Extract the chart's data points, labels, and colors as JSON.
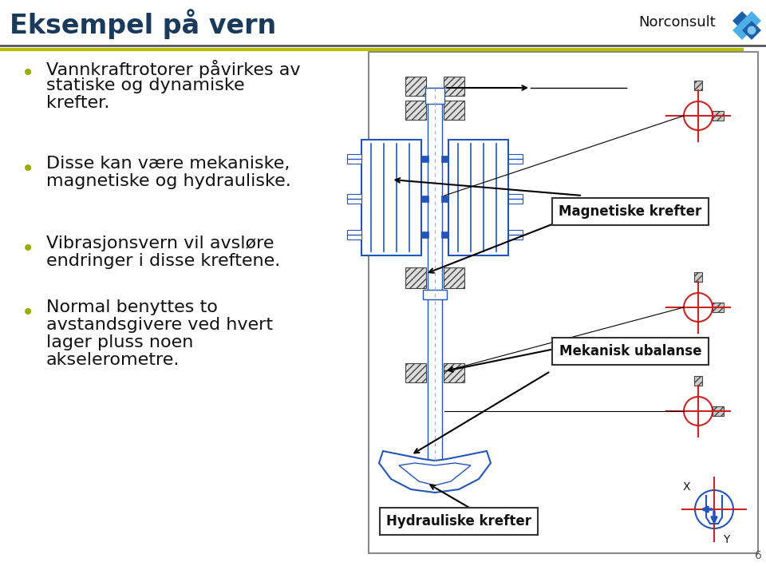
{
  "title": "Eksempel på vern",
  "title_color": "#1a3a5c",
  "title_fontsize": 24,
  "header_line_color1": "#555555",
  "header_line_color2": "#b5bd00",
  "bullet_color": "#9aaa00",
  "bullet_points_line1": [
    "Vannkraftrotorer påvirkes av",
    "statiske og dynamiske",
    "krefter."
  ],
  "bullet_points_line2": [
    "Disse kan være mekaniske,",
    "magnetiske og hydrauliske."
  ],
  "bullet_points_line3": [
    "Vibrasjonsvern vil avsløre",
    "endringer i disse kreftene."
  ],
  "bullet_points_line4": [
    "Normal benyttes to",
    "avstandsgivere ved hvert",
    "lager pluss noen",
    "akselerometre."
  ],
  "bullet_fontsize": 16,
  "text_color": "#111111",
  "box_border_color": "#888888",
  "blue_color": "#2255bb",
  "red_color": "#cc2222",
  "label_magnetiske": "Magnetiske krefter",
  "label_mekanisk": "Mekanisk ubalanse",
  "label_hydrauliske": "Hydrauliske krefter",
  "norconsult_text": "Norconsult",
  "page_number": "6"
}
